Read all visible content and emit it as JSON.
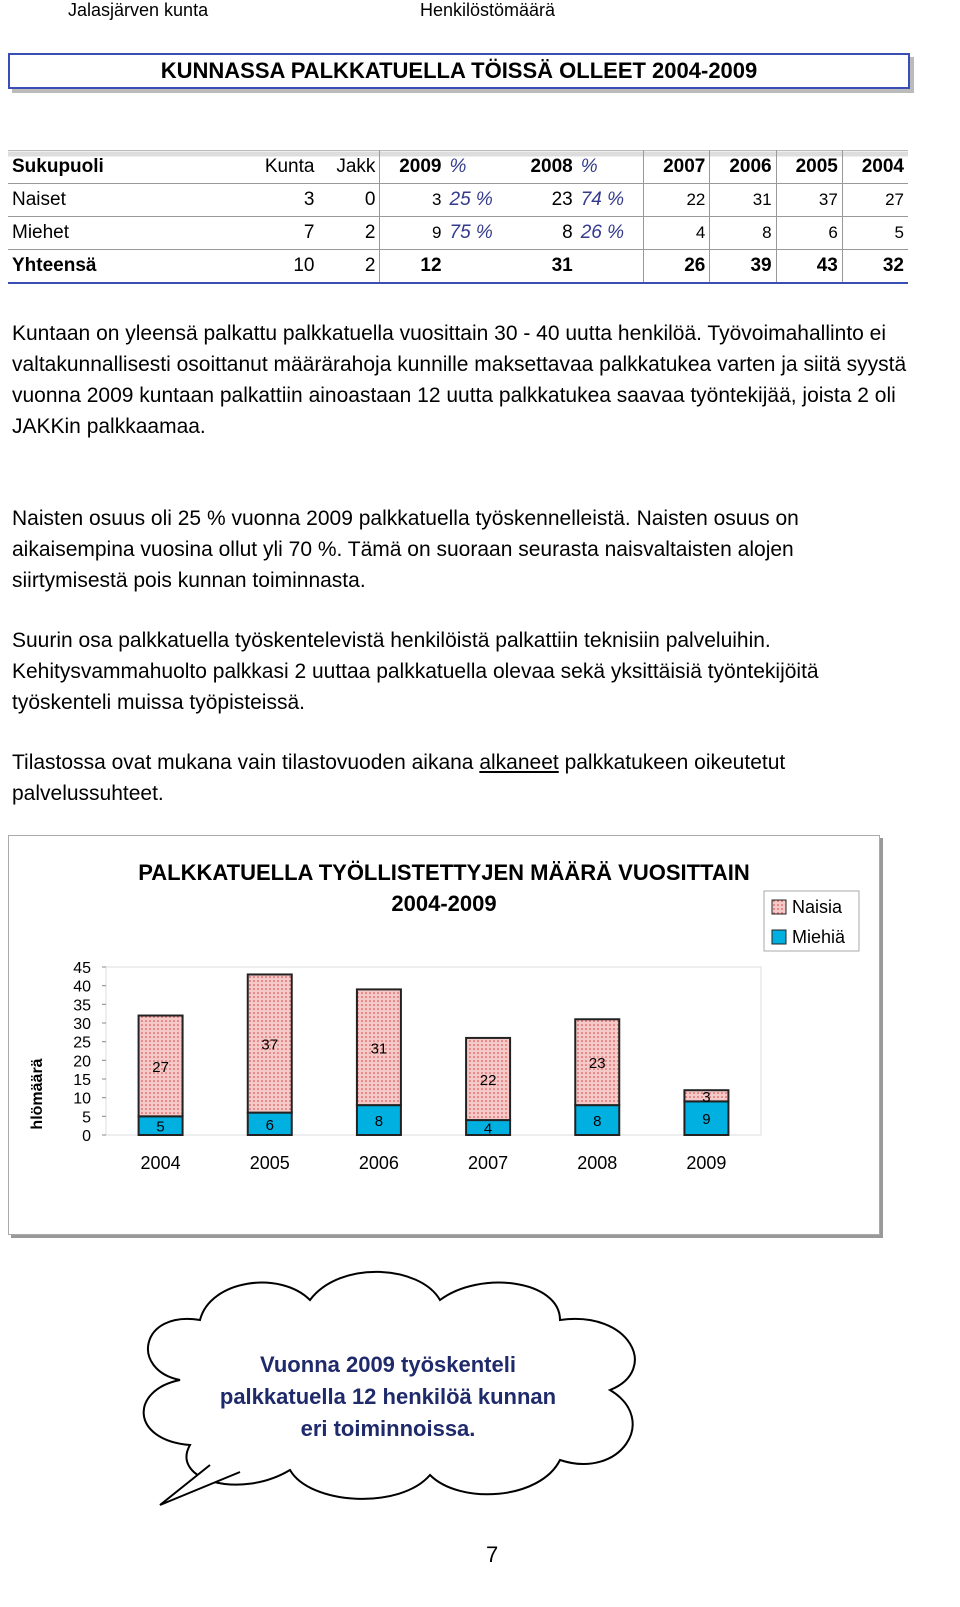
{
  "header": {
    "left": "Jalasjärven kunta",
    "right": "Henkilöstömäärä",
    "title": "KUNNASSA PALKKATUELLA TÖISSÄ OLLEET 2004-2009"
  },
  "table": {
    "header": [
      "Sukupuoli",
      "Kunta",
      "Jakk",
      "2009",
      "%",
      "2008",
      "%",
      "2007",
      "2006",
      "2005",
      "2004"
    ],
    "rows": [
      [
        "Naiset",
        3,
        0,
        3,
        "25 %",
        23,
        "74 %",
        22,
        31,
        37,
        27
      ],
      [
        "Miehet",
        7,
        2,
        9,
        "75 %",
        8,
        "26 %",
        4,
        8,
        6,
        5
      ],
      [
        "Yhteensä",
        10,
        2,
        12,
        null,
        31,
        null,
        26,
        39,
        43,
        32
      ]
    ]
  },
  "paragraphs": [
    "Kuntaan on yleensä palkattu palkkatuella vuosittain 30 - 40 uutta henkilöä. Työvoimahallinto ei valtakunnallisesti osoittanut määrärahoja kunnille maksettavaa palkkatukea varten ja siitä syystä vuonna 2009 kuntaan palkattiin ainoastaan 12 uutta palkkatukea saavaa työntekijää, joista 2 oli JAKKin palkkaamaa.",
    "Naisten osuus oli 25 % vuonna 2009 palkkatuella työskennelleistä. Naisten osuus on aikaisempina vuosina ollut yli 70 %. Tämä on suoraan seurasta naisvaltaisten alojen siirtymisestä pois kunnan toiminnasta.",
    "Suurin osa palkkatuella työskentelevistä henkilöistä palkattiin teknisiin palveluihin. Kehitysvammahuolto palkkasi 2 uuttaa palkkatuella olevaa sekä yksittäisiä työntekijöitä työskenteli muissa työpisteissä.",
    [
      "Tilastossa ovat mukana vain tilastovuoden aikana ",
      "alkaneet",
      " palkkatukeen oikeutetut palvelussuhteet."
    ]
  ],
  "chart_data": {
    "type": "stacked_bar",
    "title": [
      "PALKKATUELLA TYÖLLISTETTYJEN MÄÄRÄ VUOSITTAIN",
      "2004-2009"
    ],
    "ylabel": "hlömäärä",
    "categories": [
      "2004",
      "2005",
      "2006",
      "2007",
      "2008",
      "2009"
    ],
    "series": [
      {
        "name": "Miehiä",
        "color": "#00b0e0",
        "values": [
          5,
          6,
          8,
          4,
          8,
          9
        ]
      },
      {
        "name": "Naisia",
        "color": "#f4b8b8",
        "values": [
          27,
          37,
          31,
          22,
          23,
          3
        ]
      }
    ],
    "ylim": [
      0,
      45
    ],
    "yticks": [
      0,
      5,
      10,
      15,
      20,
      25,
      30,
      35,
      40,
      45
    ],
    "grid": false,
    "legend": "upper right"
  },
  "callout": [
    "Vuonna 2009 työskenteli",
    "palkkatuella 12 henkilöä kunnan",
    "eri toiminnoissa."
  ],
  "page_number": 7
}
